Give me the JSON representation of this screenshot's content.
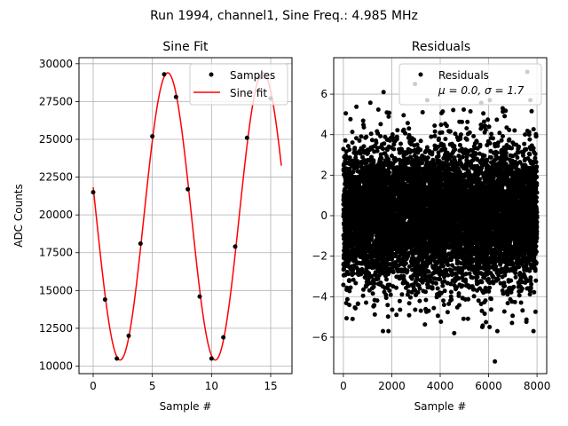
{
  "figure": {
    "suptitle": "Run 1994, channel1, Sine Freq.: 4.985 MHz"
  },
  "chart_data": [
    {
      "type": "line",
      "title": "Sine Fit",
      "xlabel": "Sample #",
      "ylabel": "ADC Counts",
      "xlim": [
        -1.2,
        16.8
      ],
      "ylim": [
        9500,
        30400
      ],
      "xticks": [
        0,
        5,
        10,
        15
      ],
      "xtick_labels": [
        "0",
        "5",
        "10",
        "15"
      ],
      "yticks": [
        10000,
        12500,
        15000,
        17500,
        20000,
        22500,
        25000,
        27500,
        30000
      ],
      "ytick_labels": [
        "10000",
        "12500",
        "15000",
        "17500",
        "20000",
        "22500",
        "25000",
        "27500",
        "30000"
      ],
      "grid": true,
      "legend_position": "top-right",
      "series": [
        {
          "name": "Samples",
          "kind": "scatter",
          "color": "#000000",
          "x": [
            0,
            1,
            2,
            3,
            4,
            5,
            6,
            7,
            8,
            9,
            10,
            11,
            12,
            13,
            14,
            15
          ],
          "y": [
            21500,
            14400,
            10500,
            12000,
            18100,
            25200,
            29300,
            27800,
            21700,
            14600,
            10500,
            11900,
            17900,
            25100,
            29100,
            27700
          ]
        },
        {
          "name": "Sine fit",
          "kind": "line",
          "color": "#ff0000",
          "model": {
            "offset": 19900,
            "amplitude": 9500,
            "period": 8.05,
            "phase_peak_x": 6.3
          },
          "x_range": [
            0,
            15.9
          ]
        }
      ]
    },
    {
      "type": "scatter",
      "title": "Residuals",
      "xlabel": "Sample #",
      "ylabel": "",
      "xlim": [
        -400,
        8400
      ],
      "ylim": [
        -7.8,
        7.8
      ],
      "xticks": [
        0,
        2000,
        4000,
        6000,
        8000
      ],
      "xtick_labels": [
        "0",
        "2000",
        "4000",
        "6000",
        "8000"
      ],
      "yticks": [
        -6,
        -4,
        -2,
        0,
        2,
        4,
        6
      ],
      "ytick_labels": [
        "−6",
        "−4",
        "−2",
        "0",
        "2",
        "4",
        "6"
      ],
      "grid": true,
      "legend_position": "top-right",
      "series": [
        {
          "name": "Residuals",
          "color": "#000000",
          "n_points": 8000,
          "mean": 0.0,
          "std": 1.7,
          "outliers_x": [
            2960,
            6260,
            7600,
            1660,
            5740,
            4580,
            6040,
            380
          ],
          "outliers_y": [
            6.5,
            -7.2,
            7.1,
            6.1,
            -5.5,
            -5.8,
            -5.5,
            -5.1
          ]
        }
      ],
      "legend_stats": {
        "mu_label": "μ = 0.0, ",
        "sigma_label": "σ = 1.7"
      }
    }
  ]
}
